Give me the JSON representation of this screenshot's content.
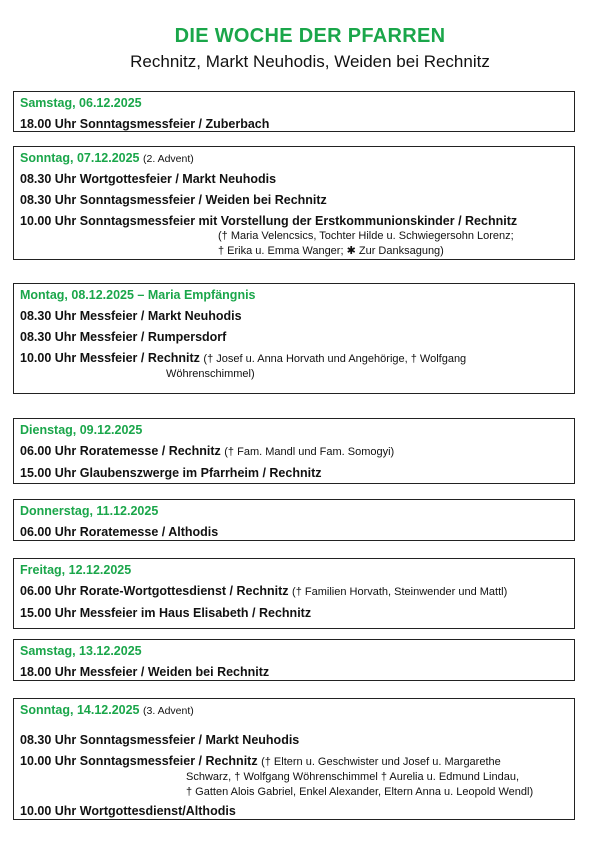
{
  "header": {
    "title": "DIE WOCHE DER PFARREN",
    "subtitle": "Rechnitz, Markt Neuhodis, Weiden bei Rechnitz"
  },
  "days": [
    {
      "day": "Samstag, 06.12.2025",
      "entries": [
        {
          "main": "18.00 Uhr Sonntagsmessfeier / Zuberbach"
        }
      ]
    },
    {
      "day": "Sonntag, 07.12.2025",
      "extra": "(2. Advent)",
      "entries": [
        {
          "main": "08.30 Uhr Wortgottesfeier / Markt Neuhodis"
        },
        {
          "main": "08.30 Uhr Sonntagsmessfeier / Weiden bei Rechnitz"
        },
        {
          "main": "10.00 Uhr Sonntagsmessfeier mit Vorstellung der Erstkommunionskinder / Rechnitz",
          "cont": [
            "(† Maria Velencsics, Tochter Hilde u. Schwiegersohn Lorenz;",
            "† Erika u. Emma Wanger; ✱ Zur Danksagung)"
          ]
        }
      ]
    },
    {
      "day": "Montag, 08.12.2025 – Maria Empfängnis",
      "entries": [
        {
          "main": "08.30 Uhr Messfeier / Markt Neuhodis"
        },
        {
          "main": "08.30 Uhr Messfeier / Rumpersdorf"
        },
        {
          "main": "10.00 Uhr Messfeier / Rechnitz",
          "note": "(† Josef u. Anna Horvath und Angehörige, † Wolfgang",
          "cont": [
            "Wöhrenschimmel)"
          ]
        }
      ]
    },
    {
      "day": "Dienstag, 09.12.2025",
      "entries": [
        {
          "main": "06.00 Uhr Roratemesse / Rechnitz",
          "note": "(† Fam. Mandl und Fam. Somogyi)"
        },
        {
          "main": "15.00 Uhr Glaubenszwerge im Pfarrheim / Rechnitz"
        }
      ]
    },
    {
      "day": "Donnerstag, 11.12.2025",
      "entries": [
        {
          "main": "06.00 Uhr Roratemesse / Althodis"
        }
      ]
    },
    {
      "day": "Freitag, 12.12.2025",
      "entries": [
        {
          "main": "06.00 Uhr Rorate-Wortgottesdienst / Rechnitz",
          "note": "(† Familien Horvath, Steinwender und Mattl)"
        },
        {
          "main": "15.00 Uhr Messfeier im Haus Elisabeth / Rechnitz"
        }
      ]
    },
    {
      "day": "Samstag, 13.12.2025",
      "entries": [
        {
          "main": "18.00 Uhr Messfeier / Weiden bei Rechnitz"
        }
      ]
    },
    {
      "day": "Sonntag, 14.12.2025",
      "extra": "(3. Advent)",
      "entries": [
        {
          "main": "08.30 Uhr Sonntagsmessfeier / Markt Neuhodis"
        },
        {
          "main": "10.00 Uhr Sonntagsmessfeier / Rechnitz",
          "note": "(† Eltern u. Geschwister und Josef u. Margarethe",
          "cont": [
            "Schwarz, † Wolfgang Wöhrenschimmel † Aurelia u. Edmund Lindau,",
            "† Gatten Alois Gabriel, Enkel Alexander, Eltern Anna u. Leopold Wendl)"
          ]
        },
        {
          "main": "10.00 Uhr Wortgottesdienst/Althodis"
        }
      ]
    }
  ]
}
